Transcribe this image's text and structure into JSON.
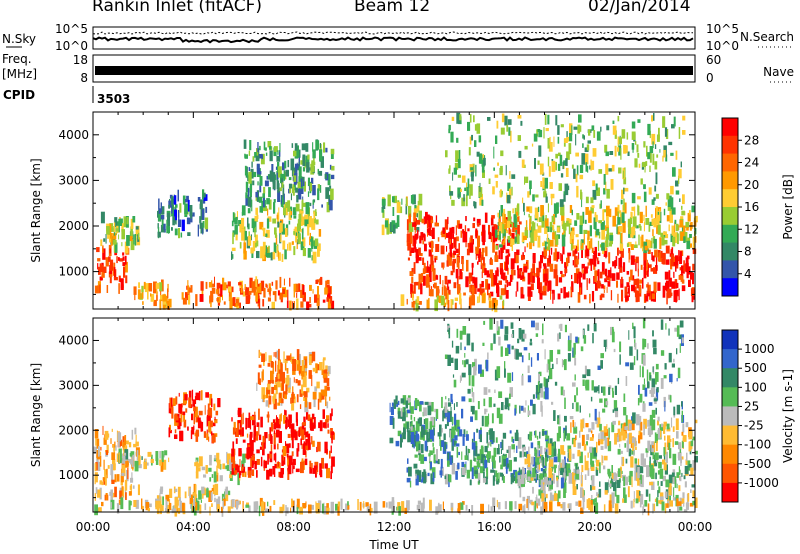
{
  "header": {
    "title": "Rankin Inlet (fitACF)",
    "beam": "Beam 12",
    "date": "02/Jan/2014"
  },
  "top_panel": {
    "left_label": "N.Sky",
    "right_label": "N.Search",
    "left_ticks": [
      "10^5",
      "10^0"
    ],
    "right_ticks": [
      "10^5",
      "10^0"
    ]
  },
  "freq_panel": {
    "left_label_1": "Freq.",
    "left_label_2": "[MHz]",
    "right_label": "Nave",
    "left_ticks": [
      "18",
      "8"
    ],
    "right_ticks": [
      "60",
      "0"
    ]
  },
  "cpid": {
    "label": "CPID",
    "value": "3503"
  },
  "chart_data": [
    {
      "type": "heatmap",
      "name": "Power",
      "ylabel": "Slant Range [km]",
      "xlabel": "Time UT",
      "ylim": [
        180,
        4500
      ],
      "xlim_hours": [
        0,
        24
      ],
      "yticks": [
        "4000",
        "3000",
        "2000",
        "1000"
      ],
      "xticks": [
        "00:00",
        "04:00",
        "08:00",
        "12:00",
        "16:00",
        "20:00",
        "00:00"
      ],
      "colorbar": {
        "label": "Power [dB]",
        "ticks": [
          "28",
          "24",
          "20",
          "16",
          "12",
          "8",
          "4"
        ],
        "colors": [
          "#ff0000",
          "#ff3300",
          "#ff6600",
          "#ff9900",
          "#ffcc33",
          "#99cc33",
          "#33aa55",
          "#338866",
          "#3355aa",
          "#0000ff"
        ]
      },
      "regions": [
        {
          "t0": 0.0,
          "t1": 1.3,
          "r0": 600,
          "r1": 1500,
          "lvl": 0.85
        },
        {
          "t0": 0.2,
          "t1": 1.8,
          "r0": 1500,
          "r1": 2200,
          "lvl": 0.45
        },
        {
          "t0": 1.5,
          "t1": 3.0,
          "r0": 250,
          "r1": 700,
          "lvl": 0.6
        },
        {
          "t0": 2.5,
          "t1": 4.5,
          "r0": 1800,
          "r1": 2700,
          "lvl": 0.25
        },
        {
          "t0": 3.5,
          "t1": 9.5,
          "r0": 250,
          "r1": 800,
          "lvl": 0.75
        },
        {
          "t0": 5.5,
          "t1": 9.0,
          "r0": 1300,
          "r1": 2400,
          "lvl": 0.45
        },
        {
          "t0": 6.0,
          "t1": 9.5,
          "r0": 2400,
          "r1": 3800,
          "lvl": 0.3
        },
        {
          "t0": 11.5,
          "t1": 13.0,
          "r0": 1900,
          "r1": 2600,
          "lvl": 0.45
        },
        {
          "t0": 12.5,
          "t1": 17.0,
          "r0": 500,
          "r1": 2200,
          "lvl": 0.88
        },
        {
          "t0": 17.0,
          "t1": 24.0,
          "r0": 400,
          "r1": 1500,
          "lvl": 0.9
        },
        {
          "t0": 16.0,
          "t1": 24.0,
          "r0": 1500,
          "r1": 2400,
          "lvl": 0.5
        },
        {
          "t0": 14.0,
          "t1": 23.5,
          "r0": 2400,
          "r1": 4400,
          "lvl": 0.4
        },
        {
          "t0": 11.8,
          "t1": 16.5,
          "r0": 220,
          "r1": 450,
          "lvl": 0.6
        }
      ]
    },
    {
      "type": "heatmap",
      "name": "Velocity",
      "ylabel": "Slant Range [km]",
      "xlabel": "Time UT",
      "ylim": [
        180,
        4500
      ],
      "xlim_hours": [
        0,
        24
      ],
      "yticks": [
        "4000",
        "3000",
        "2000",
        "1000"
      ],
      "xticks": [
        "00:00",
        "04:00",
        "08:00",
        "12:00",
        "16:00",
        "20:00",
        "00:00"
      ],
      "colorbar": {
        "label": "Velocity [m s-1]",
        "ticks": [
          "1000",
          "500",
          "100",
          "25",
          "-25",
          "-100",
          "-500",
          "-1000"
        ],
        "colors": [
          "#1133bb",
          "#3366cc",
          "#338866",
          "#55bb55",
          "#bbbbbb",
          "#ffbb33",
          "#ff8800",
          "#ff5500",
          "#ff0000"
        ]
      },
      "regions": [
        {
          "t0": 0.0,
          "t1": 1.8,
          "r0": 500,
          "r1": 2000,
          "lvl": 0.35
        },
        {
          "t0": 1.0,
          "t1": 3.0,
          "r0": 1200,
          "r1": 1500,
          "lvl": 0.5
        },
        {
          "t0": 2.5,
          "t1": 5.5,
          "r0": 180,
          "r1": 700,
          "lvl": 0.45
        },
        {
          "t0": 3.0,
          "t1": 5.0,
          "r0": 1800,
          "r1": 2800,
          "lvl": 0.1
        },
        {
          "t0": 4.0,
          "t1": 6.0,
          "r0": 900,
          "r1": 1400,
          "lvl": 0.5
        },
        {
          "t0": 5.5,
          "t1": 9.5,
          "r0": 1000,
          "r1": 2400,
          "lvl": 0.08
        },
        {
          "t0": 6.5,
          "t1": 9.5,
          "r0": 2500,
          "r1": 3700,
          "lvl": 0.3
        },
        {
          "t0": 11.8,
          "t1": 14.5,
          "r0": 1700,
          "r1": 2700,
          "lvl": 0.68
        },
        {
          "t0": 12.5,
          "t1": 19.0,
          "r0": 800,
          "r1": 2000,
          "lvl": 0.7
        },
        {
          "t0": 17.0,
          "t1": 24.0,
          "r0": 400,
          "r1": 1600,
          "lvl": 0.55
        },
        {
          "t0": 19.0,
          "t1": 24.0,
          "r0": 1600,
          "r1": 2200,
          "lvl": 0.45
        },
        {
          "t0": 14.0,
          "t1": 23.5,
          "r0": 2200,
          "r1": 4400,
          "lvl": 0.65
        },
        {
          "t0": 0.0,
          "t1": 24.0,
          "r0": 200,
          "r1": 400,
          "lvl": 0.42
        }
      ]
    }
  ]
}
